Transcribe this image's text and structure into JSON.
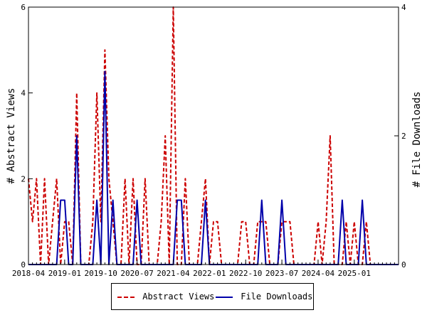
{
  "chart_data": {
    "type": "line",
    "x_ticks": [
      "2018-04",
      "2019-01",
      "2019-10",
      "2020-07",
      "2021-04",
      "2022-01",
      "2022-10",
      "2023-07",
      "2024-04",
      "2025-01"
    ],
    "x_range": [
      "2018-04",
      "2025-12"
    ],
    "ylabel": "# Abstract Views",
    "y2label": "# File Downloads",
    "ylim": [
      0,
      6
    ],
    "y2lim": [
      0,
      4
    ],
    "y_ticks": [
      0,
      2,
      4,
      6
    ],
    "y2_ticks": [
      0,
      2,
      4
    ],
    "grid": false,
    "legend_position": "bottom",
    "series": [
      {
        "name": "Abstract Views",
        "axis": "left",
        "color": "#cc0000",
        "style": "dashed",
        "points": [
          [
            "2018-04",
            2
          ],
          [
            "2018-05",
            1
          ],
          [
            "2018-06",
            2
          ],
          [
            "2018-07",
            0
          ],
          [
            "2018-08",
            2
          ],
          [
            "2018-09",
            0
          ],
          [
            "2018-10",
            1
          ],
          [
            "2018-11",
            2
          ],
          [
            "2018-12",
            0
          ],
          [
            "2019-01",
            1
          ],
          [
            "2019-02",
            1
          ],
          [
            "2019-03",
            0
          ],
          [
            "2019-04",
            4
          ],
          [
            "2019-05",
            0
          ],
          [
            "2019-06",
            0
          ],
          [
            "2019-07",
            0
          ],
          [
            "2019-08",
            1
          ],
          [
            "2019-09",
            4
          ],
          [
            "2019-10",
            1
          ],
          [
            "2019-11",
            5
          ],
          [
            "2019-12",
            2
          ],
          [
            "2020-01",
            1
          ],
          [
            "2020-02",
            0
          ],
          [
            "2020-03",
            0
          ],
          [
            "2020-04",
            2
          ],
          [
            "2020-05",
            0
          ],
          [
            "2020-06",
            2
          ],
          [
            "2020-07",
            0
          ],
          [
            "2020-08",
            0
          ],
          [
            "2020-09",
            2
          ],
          [
            "2020-10",
            0
          ],
          [
            "2020-11",
            0
          ],
          [
            "2020-12",
            0
          ],
          [
            "2021-01",
            1
          ],
          [
            "2021-02",
            3
          ],
          [
            "2021-03",
            0
          ],
          [
            "2021-04",
            6
          ],
          [
            "2021-05",
            0
          ],
          [
            "2021-06",
            0
          ],
          [
            "2021-07",
            2
          ],
          [
            "2021-08",
            0
          ],
          [
            "2021-09",
            0
          ],
          [
            "2021-10",
            0
          ],
          [
            "2021-11",
            1
          ],
          [
            "2021-12",
            2
          ],
          [
            "2022-01",
            0
          ],
          [
            "2022-02",
            1
          ],
          [
            "2022-03",
            1
          ],
          [
            "2022-04",
            0
          ],
          [
            "2022-05",
            0
          ],
          [
            "2022-06",
            0
          ],
          [
            "2022-07",
            0
          ],
          [
            "2022-08",
            0
          ],
          [
            "2022-09",
            1
          ],
          [
            "2022-10",
            1
          ],
          [
            "2022-11",
            0
          ],
          [
            "2022-12",
            0
          ],
          [
            "2023-01",
            1
          ],
          [
            "2023-02",
            1
          ],
          [
            "2023-03",
            1
          ],
          [
            "2023-04",
            0
          ],
          [
            "2023-05",
            0
          ],
          [
            "2023-06",
            0
          ],
          [
            "2023-07",
            1
          ],
          [
            "2023-08",
            1
          ],
          [
            "2023-09",
            1
          ],
          [
            "2023-10",
            0
          ],
          [
            "2023-11",
            0
          ],
          [
            "2023-12",
            0
          ],
          [
            "2024-01",
            0
          ],
          [
            "2024-02",
            0
          ],
          [
            "2024-03",
            0
          ],
          [
            "2024-04",
            1
          ],
          [
            "2024-05",
            0
          ],
          [
            "2024-06",
            1
          ],
          [
            "2024-07",
            3
          ],
          [
            "2024-08",
            0
          ],
          [
            "2024-09",
            0
          ],
          [
            "2024-10",
            0
          ],
          [
            "2024-11",
            1
          ],
          [
            "2024-12",
            0
          ],
          [
            "2025-01",
            1
          ],
          [
            "2025-02",
            0
          ],
          [
            "2025-03",
            0
          ],
          [
            "2025-04",
            1
          ],
          [
            "2025-05",
            0
          ],
          [
            "2025-06",
            0
          ],
          [
            "2025-07",
            0
          ],
          [
            "2025-08",
            0
          ],
          [
            "2025-09",
            0
          ],
          [
            "2025-10",
            0
          ],
          [
            "2025-11",
            0
          ],
          [
            "2025-12",
            0
          ]
        ]
      },
      {
        "name": "File Downloads",
        "axis": "right",
        "color": "#0000aa",
        "style": "solid",
        "points": [
          [
            "2018-04",
            0
          ],
          [
            "2018-05",
            0
          ],
          [
            "2018-06",
            0
          ],
          [
            "2018-07",
            0
          ],
          [
            "2018-08",
            0
          ],
          [
            "2018-09",
            0
          ],
          [
            "2018-10",
            0
          ],
          [
            "2018-11",
            0
          ],
          [
            "2018-12",
            1
          ],
          [
            "2019-01",
            1
          ],
          [
            "2019-02",
            0
          ],
          [
            "2019-03",
            0
          ],
          [
            "2019-04",
            2
          ],
          [
            "2019-05",
            0
          ],
          [
            "2019-06",
            0
          ],
          [
            "2019-07",
            0
          ],
          [
            "2019-08",
            0
          ],
          [
            "2019-09",
            1
          ],
          [
            "2019-10",
            0
          ],
          [
            "2019-11",
            3
          ],
          [
            "2019-12",
            0
          ],
          [
            "2020-01",
            1
          ],
          [
            "2020-02",
            0
          ],
          [
            "2020-03",
            0
          ],
          [
            "2020-04",
            0
          ],
          [
            "2020-05",
            0
          ],
          [
            "2020-06",
            0
          ],
          [
            "2020-07",
            1
          ],
          [
            "2020-08",
            0
          ],
          [
            "2020-09",
            0
          ],
          [
            "2020-10",
            0
          ],
          [
            "2020-11",
            0
          ],
          [
            "2020-12",
            0
          ],
          [
            "2021-01",
            0
          ],
          [
            "2021-02",
            0
          ],
          [
            "2021-03",
            0
          ],
          [
            "2021-04",
            0
          ],
          [
            "2021-05",
            1
          ],
          [
            "2021-06",
            1
          ],
          [
            "2021-07",
            0
          ],
          [
            "2021-08",
            0
          ],
          [
            "2021-09",
            0
          ],
          [
            "2021-10",
            0
          ],
          [
            "2021-11",
            0
          ],
          [
            "2021-12",
            1
          ],
          [
            "2022-01",
            0
          ],
          [
            "2022-02",
            0
          ],
          [
            "2022-03",
            0
          ],
          [
            "2022-04",
            0
          ],
          [
            "2022-05",
            0
          ],
          [
            "2022-06",
            0
          ],
          [
            "2022-07",
            0
          ],
          [
            "2022-08",
            0
          ],
          [
            "2022-09",
            0
          ],
          [
            "2022-10",
            0
          ],
          [
            "2022-11",
            0
          ],
          [
            "2022-12",
            0
          ],
          [
            "2023-01",
            0
          ],
          [
            "2023-02",
            1
          ],
          [
            "2023-03",
            0
          ],
          [
            "2023-04",
            0
          ],
          [
            "2023-05",
            0
          ],
          [
            "2023-06",
            0
          ],
          [
            "2023-07",
            1
          ],
          [
            "2023-08",
            0
          ],
          [
            "2023-09",
            0
          ],
          [
            "2023-10",
            0
          ],
          [
            "2023-11",
            0
          ],
          [
            "2023-12",
            0
          ],
          [
            "2024-01",
            0
          ],
          [
            "2024-02",
            0
          ],
          [
            "2024-03",
            0
          ],
          [
            "2024-04",
            0
          ],
          [
            "2024-05",
            0
          ],
          [
            "2024-06",
            0
          ],
          [
            "2024-07",
            0
          ],
          [
            "2024-08",
            0
          ],
          [
            "2024-09",
            0
          ],
          [
            "2024-10",
            1
          ],
          [
            "2024-11",
            0
          ],
          [
            "2024-12",
            0
          ],
          [
            "2025-01",
            0
          ],
          [
            "2025-02",
            0
          ],
          [
            "2025-03",
            1
          ],
          [
            "2025-04",
            0
          ],
          [
            "2025-05",
            0
          ],
          [
            "2025-06",
            0
          ],
          [
            "2025-07",
            0
          ],
          [
            "2025-08",
            0
          ],
          [
            "2025-09",
            0
          ],
          [
            "2025-10",
            0
          ],
          [
            "2025-11",
            0
          ],
          [
            "2025-12",
            0
          ]
        ]
      }
    ]
  }
}
